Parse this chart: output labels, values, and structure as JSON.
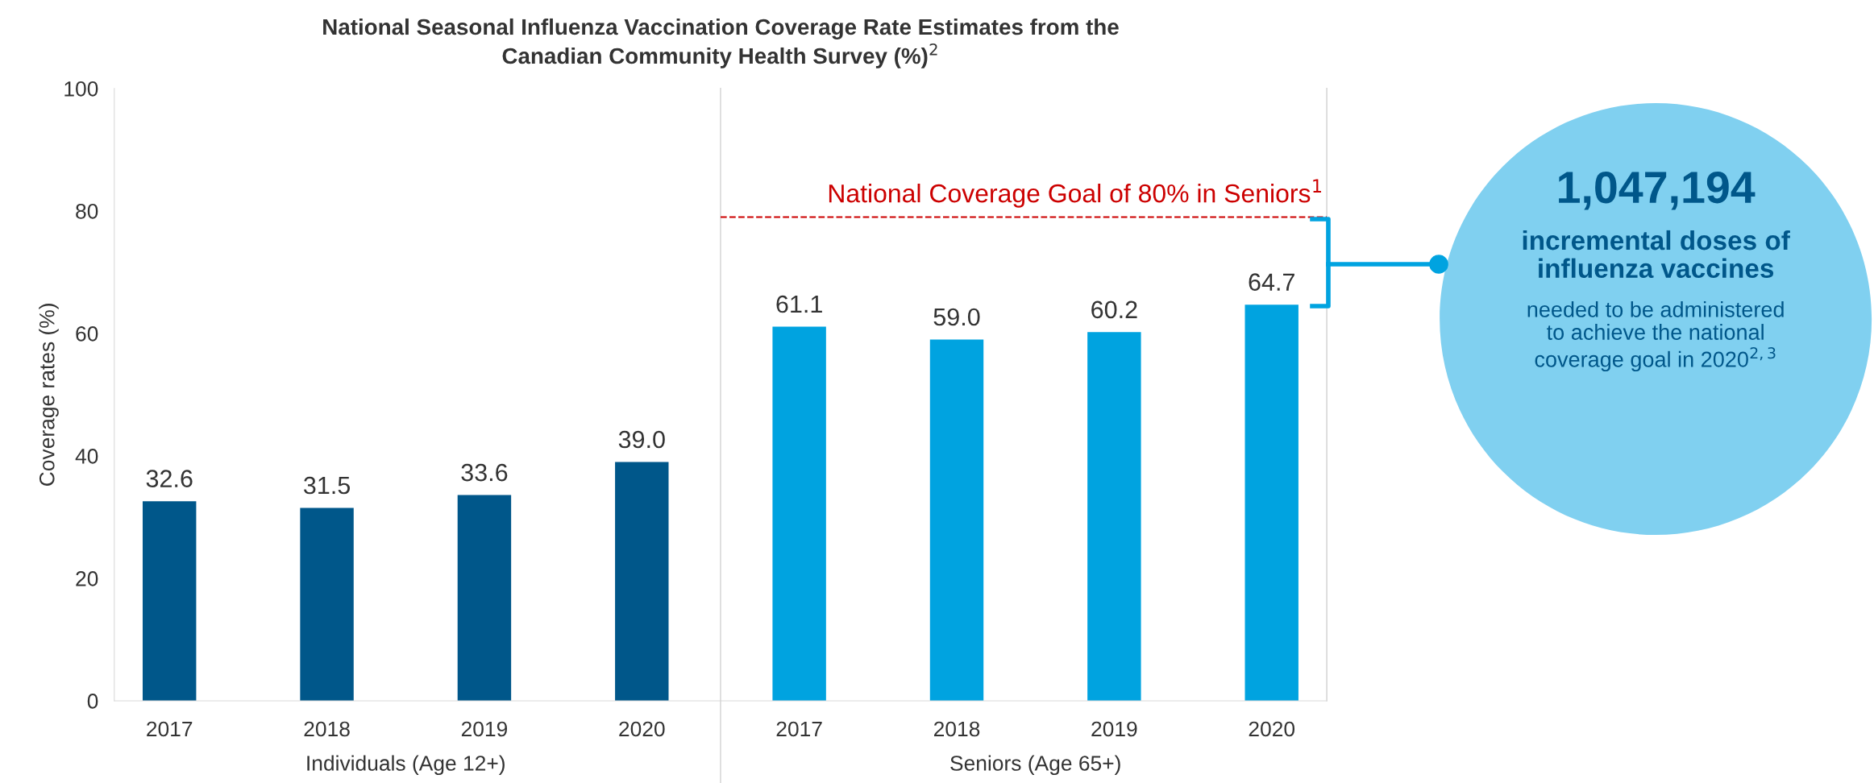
{
  "chart_data": {
    "type": "bar",
    "title": "National Seasonal Influenza Vaccination Coverage Rate Estimates from the\nCanadian Community Health Survey (%)$^{2}$",
    "ylabel": "Coverage rates (%)",
    "categories": [
      "2017",
      "2018",
      "2019",
      "2020",
      "2017",
      "2018",
      "2019",
      "2020"
    ],
    "values": [
      32.6,
      31.5,
      33.6,
      39.0,
      61.1,
      59.0,
      60.2,
      64.7
    ],
    "colors": [
      "#00578a",
      "#00578a",
      "#00578a",
      "#00578a",
      "#00a3e0",
      "#00a3e0",
      "#00a3e0",
      "#00a3e0"
    ],
    "value_labels": [
      "32.6",
      "31.5",
      "33.6",
      "39.0",
      "61.1",
      "59.0",
      "60.2",
      "64.7"
    ],
    "ylim": [
      0,
      100
    ],
    "yticks": [
      0,
      20,
      40,
      60,
      80,
      100
    ],
    "grid": false,
    "ref_lines": [
      {
        "axis": "y",
        "value": 79,
        "label": "National Coverage Goal of 80% in Seniors$^{1}$",
        "color": "#cc0000",
        "line_style": "dashed"
      }
    ],
    "annotations": [
      "Individuals (Age 12+)",
      "Seniors (Age 65+)",
      "1,047,194",
      "incremental doses of\ninfluenza vaccines",
      "needed to be administered\nto achieve the national\ncoverage goal in 2020$^{2,3}$"
    ]
  }
}
